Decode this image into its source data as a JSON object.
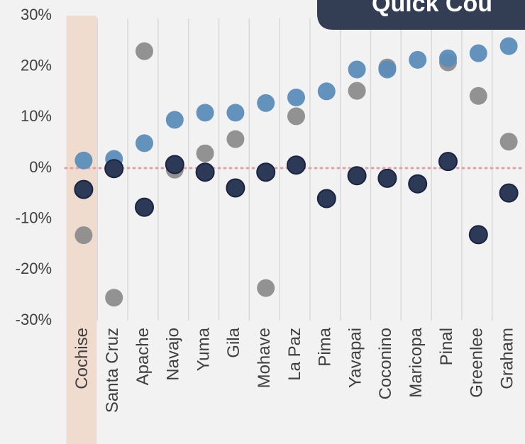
{
  "chart_data": {
    "type": "dot",
    "annotation": "Quick Cou",
    "categories": [
      "Cochise",
      "Santa Cruz",
      "Apache",
      "Navajo",
      "Yuma",
      "Gila",
      "Mohave",
      "La Paz",
      "Pima",
      "Yavapai",
      "Coconino",
      "Maricopa",
      "Pinal",
      "Greenlee",
      "Graham"
    ],
    "series": [
      {
        "color": "#8c8c8c",
        "values": [
          -13.2,
          -25.5,
          23,
          -0.3,
          2.9,
          5.7,
          -23.6,
          10.2,
          null,
          15.2,
          19.8,
          null,
          20.8,
          14.2,
          5.2
        ]
      },
      {
        "color": "#5b8db8",
        "values": [
          1.5,
          1.8,
          4.9,
          9.5,
          10.9,
          10.9,
          12.8,
          13.9,
          15.1,
          19.4,
          19.4,
          21.3,
          21.6,
          22.6,
          24
        ]
      },
      {
        "color": "#2c3a58",
        "values": [
          -4.2,
          -0.1,
          -7.7,
          0.7,
          -0.8,
          -3.9,
          -0.8,
          0.6,
          -6,
          -1.5,
          -2,
          -3.1,
          1.3,
          -13.1,
          -4.9
        ]
      }
    ],
    "ylim": [
      -30,
      30
    ],
    "yticks": [
      {
        "value": -30,
        "label": "-30%"
      },
      {
        "value": -20,
        "label": "-20%"
      },
      {
        "value": -10,
        "label": "-10%"
      },
      {
        "value": 0,
        "label": "0%"
      },
      {
        "value": 10,
        "label": "10%"
      },
      {
        "value": 20,
        "label": "20%"
      },
      {
        "value": 30,
        "label": "30%"
      }
    ],
    "reference_line": 0,
    "reference_color": "#e0a0a8",
    "highlight": "Cochise",
    "highlight_color": "#f0dccf",
    "grid": true
  }
}
